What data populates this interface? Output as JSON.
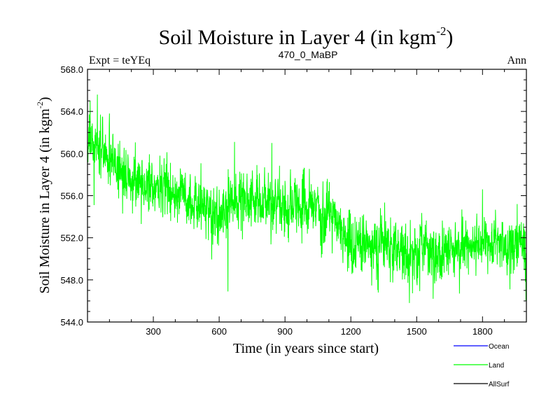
{
  "chart_data": {
    "type": "line",
    "title": "Soil Moisture in Layer 4 (in kgm",
    "title_sup": "-2",
    "title_close": ")",
    "left_label": "Expt = teYEq",
    "center_label": "470_0_MaBP",
    "right_label": "Ann",
    "xlabel": "Time (in years since start)",
    "ylabel": "Soil Moisture in Layer 4 (in kgm",
    "ylabel_sup": "-2",
    "ylabel_close": ")",
    "xlim": [
      0,
      2000
    ],
    "ylim": [
      544.0,
      568.0
    ],
    "xticks": [
      300,
      600,
      900,
      1200,
      1500,
      1800
    ],
    "xtick_labels": [
      "300",
      "600",
      "900",
      "1200",
      "1500",
      "1800"
    ],
    "yticks": [
      544.0,
      548.0,
      552.0,
      556.0,
      560.0,
      564.0,
      568.0
    ],
    "ytick_labels": [
      "544.0",
      "548.0",
      "552.0",
      "556.0",
      "560.0",
      "564.0",
      "568.0"
    ],
    "legend": [
      {
        "name": "Ocean",
        "color": "#0000ff"
      },
      {
        "name": "Land",
        "color": "#00ff00"
      },
      {
        "name": "AllSurf",
        "color": "#000000"
      }
    ],
    "series": [
      {
        "name": "Land",
        "color": "#00ff00",
        "noise_amplitude": 2.2,
        "n_points": 2000,
        "trend": [
          [
            0,
            561.5
          ],
          [
            100,
            559.5
          ],
          [
            200,
            557.5
          ],
          [
            400,
            556.5
          ],
          [
            600,
            554.0
          ],
          [
            700,
            556.0
          ],
          [
            900,
            555.0
          ],
          [
            1100,
            554.5
          ],
          [
            1200,
            551.5
          ],
          [
            1400,
            551.0
          ],
          [
            1600,
            550.5
          ],
          [
            1800,
            551.5
          ],
          [
            2000,
            551.0
          ]
        ],
        "peaks": [
          [
            12,
            565.0
          ],
          [
            45,
            565.6
          ],
          [
            68,
            563.5
          ],
          [
            100,
            563.8
          ],
          [
            330,
            559.8
          ],
          [
            670,
            561.1
          ],
          [
            840,
            561.0
          ],
          [
            1800,
            556.6
          ],
          [
            1958,
            555.2
          ]
        ],
        "troughs": [
          [
            30,
            555.1
          ],
          [
            640,
            546.9
          ],
          [
            1325,
            546.8
          ],
          [
            1575,
            546.2
          ],
          [
            1695,
            546.7
          ],
          [
            1925,
            547.1
          ],
          [
            1998,
            546.0
          ]
        ]
      }
    ]
  }
}
